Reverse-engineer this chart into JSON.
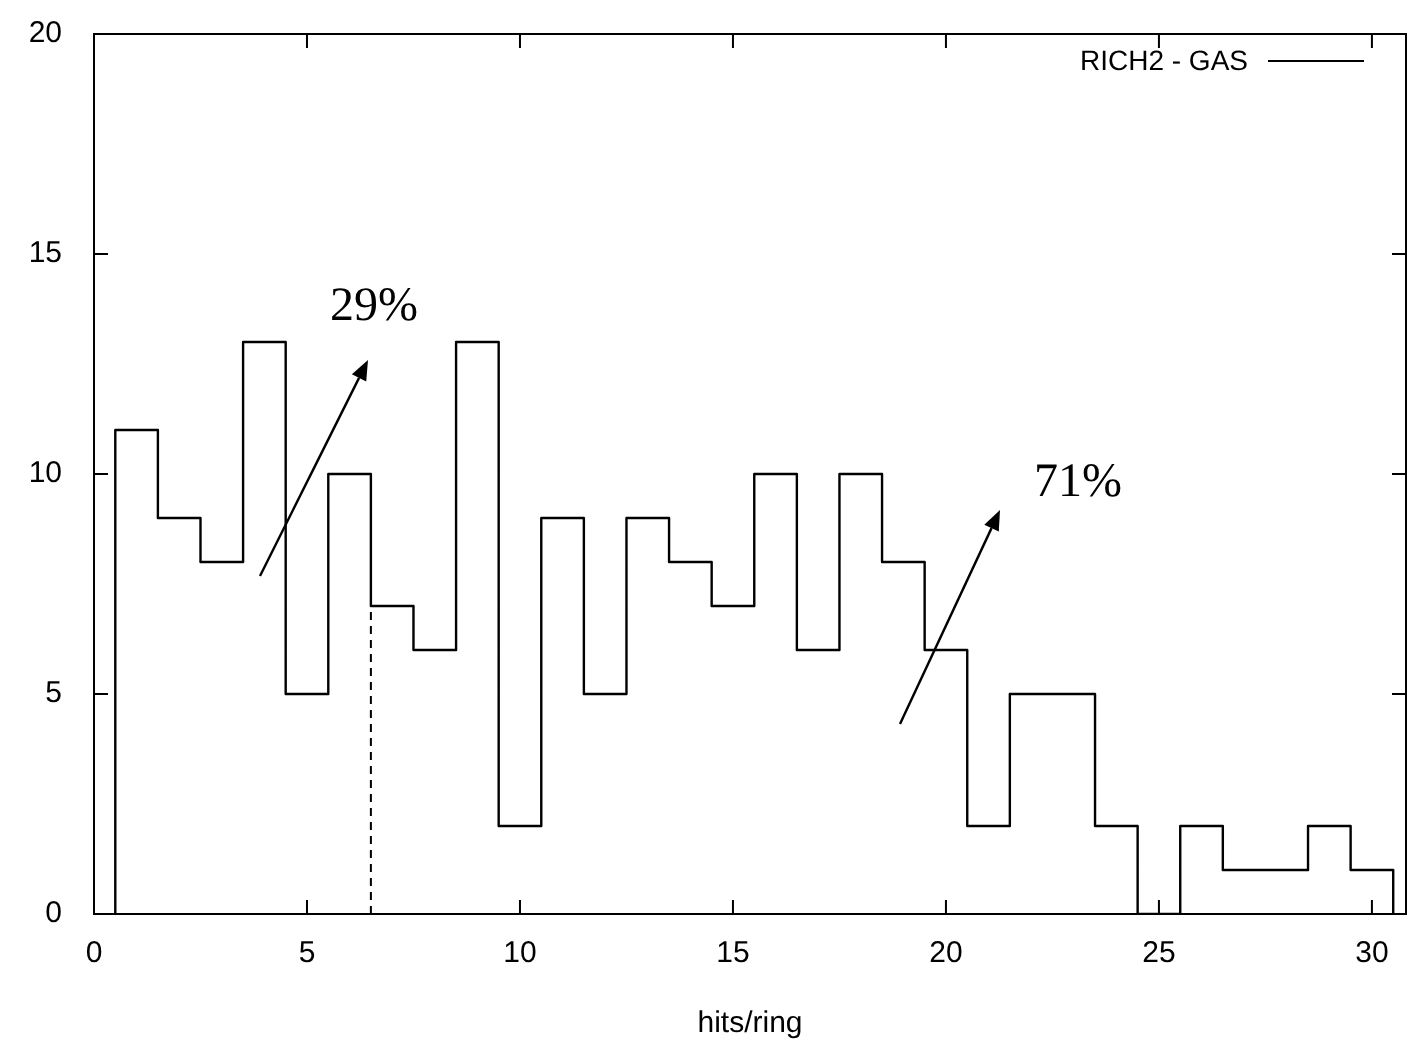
{
  "chart_data": {
    "type": "histogram",
    "xlabel": "hits/ring",
    "bins": [
      0.5,
      1.5,
      2.5,
      3.5,
      4.5,
      5.5,
      6.5,
      7.5,
      8.5,
      9.5,
      10.5,
      11.5,
      12.5,
      13.5,
      14.5,
      15.5,
      16.5,
      17.5,
      18.5,
      19.5,
      20.5,
      21.5,
      22.5,
      23.5,
      24.5,
      25.5,
      26.5,
      27.5,
      28.5,
      29.5,
      30.5
    ],
    "series": [
      {
        "name": "RICH2 - GAS",
        "color": "#000000",
        "values": [
          11,
          9,
          8,
          13,
          5,
          10,
          7,
          6,
          13,
          2,
          9,
          5,
          9,
          8,
          7,
          10,
          6,
          10,
          8,
          6,
          2,
          5,
          5,
          2,
          0,
          2,
          1,
          1,
          2,
          1
        ]
      }
    ],
    "xlim": [
      0,
      30.8
    ],
    "xticks": [
      0,
      5,
      10,
      15,
      20,
      25,
      30
    ],
    "ylim": [
      0,
      20
    ],
    "yticks": [
      0,
      5,
      10,
      15,
      20
    ],
    "ref_lines": [
      {
        "axis": "x",
        "value": 6.5,
        "line_style": "dashed"
      }
    ],
    "annotations": [
      "29%",
      "71%"
    ],
    "legend": "top right",
    "grid": false
  }
}
